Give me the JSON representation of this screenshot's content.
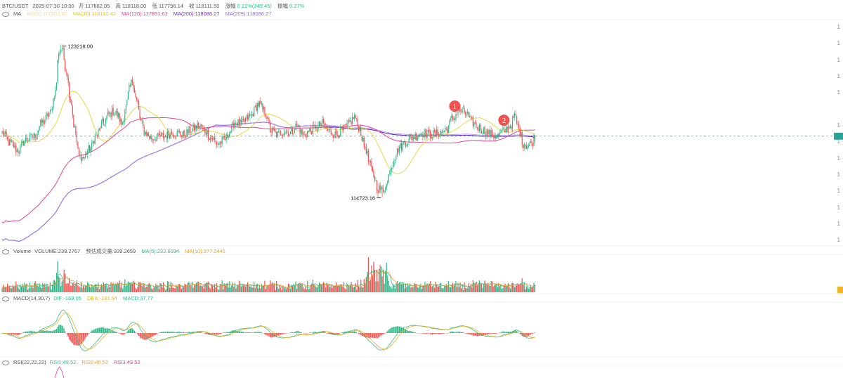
{
  "header": {
    "symbol": "BTC/USDT",
    "datetime": "2025-07-30 10:00",
    "open_label": "开",
    "open": "117862.05",
    "high_label": "高",
    "high": "118118.00",
    "low_label": "低",
    "low": "117796.14",
    "close_label": "收",
    "close": "118111.50",
    "change_label": "涨幅",
    "change": "0.21%(249.45)",
    "amp_label": "振幅",
    "amp": "0.27%"
  },
  "ma_legend": {
    "title": "MA",
    "ma5": "MA(5):117603.92",
    "ma30": "MA(30):118110.42",
    "ma120": "MA(120):117891.63",
    "ma200": "MA(200):118086.27",
    "ma209": "MA(209):118086.27"
  },
  "volume_legend": {
    "title": "Volume",
    "volume": "VOLUME:239.2767",
    "estimate": "预估成交量:339.2659",
    "ma5": "MA(5):232.6094",
    "ma10": "MA(10):377.3441"
  },
  "macd_legend": {
    "title": "MACD(14,30,7)",
    "dif": "DIF:-169.05",
    "dea": "DEA:-181.94",
    "macd": "MACD:37.77"
  },
  "rsi_legend": {
    "title": "RSI(22,22,22)",
    "rsi1": "RSI1:49.52",
    "rsi2": "RSI2:49.52",
    "rsi3": "RSI3:49.52"
  },
  "annotations": {
    "high_marker": "123218.00",
    "low_marker": "114723.16",
    "peak1": "1",
    "peak2": "2"
  },
  "colors": {
    "up": "#2cb98a",
    "down": "#ef5350",
    "ma5": "#f5c242",
    "ma30": "#e6d84a",
    "ma120": "#e0439a",
    "ma200": "#5a2fc2",
    "ma209": "#b08ce8",
    "dif": "#e6b422",
    "dea": "#3cb88a",
    "marker": "#ef5350",
    "price_line": "#26a69a"
  },
  "chart_data": {
    "type": "candlestick",
    "price_range": [
      112000,
      124600
    ],
    "high": 123218.0,
    "low": 114723.16,
    "last_close": 118111.5,
    "anchors": [
      [
        0,
        118300
      ],
      [
        8,
        117700
      ],
      [
        15,
        117300
      ],
      [
        22,
        117900
      ],
      [
        30,
        118100
      ],
      [
        38,
        118900
      ],
      [
        45,
        119400
      ],
      [
        50,
        120600
      ],
      [
        53,
        122800
      ],
      [
        56,
        123000
      ],
      [
        60,
        121800
      ],
      [
        64,
        120200
      ],
      [
        68,
        118500
      ],
      [
        72,
        117000
      ],
      [
        76,
        116900
      ],
      [
        82,
        117400
      ],
      [
        88,
        118100
      ],
      [
        94,
        118800
      ],
      [
        100,
        119300
      ],
      [
        104,
        119500
      ],
      [
        108,
        119300
      ],
      [
        112,
        118800
      ],
      [
        116,
        119700
      ],
      [
        119,
        120700
      ],
      [
        122,
        121200
      ],
      [
        126,
        120100
      ],
      [
        130,
        118900
      ],
      [
        134,
        118300
      ],
      [
        140,
        118000
      ],
      [
        150,
        118100
      ],
      [
        160,
        118300
      ],
      [
        170,
        118200
      ],
      [
        178,
        118500
      ],
      [
        184,
        118700
      ],
      [
        190,
        118400
      ],
      [
        196,
        118000
      ],
      [
        202,
        117700
      ],
      [
        208,
        117900
      ],
      [
        214,
        118400
      ],
      [
        218,
        118900
      ],
      [
        224,
        118800
      ],
      [
        232,
        119200
      ],
      [
        240,
        119900
      ],
      [
        246,
        119500
      ],
      [
        252,
        118400
      ],
      [
        258,
        118200
      ],
      [
        264,
        118400
      ],
      [
        270,
        118300
      ],
      [
        276,
        118700
      ],
      [
        282,
        118200
      ],
      [
        288,
        118400
      ],
      [
        294,
        118600
      ],
      [
        300,
        118800
      ],
      [
        306,
        118400
      ],
      [
        312,
        118200
      ],
      [
        318,
        118400
      ],
      [
        322,
        118600
      ],
      [
        326,
        118900
      ],
      [
        330,
        119200
      ],
      [
        334,
        118600
      ],
      [
        340,
        117500
      ],
      [
        344,
        116600
      ],
      [
        348,
        115900
      ],
      [
        352,
        115200
      ],
      [
        356,
        115100
      ],
      [
        360,
        115400
      ],
      [
        364,
        116400
      ],
      [
        368,
        117000
      ],
      [
        372,
        117500
      ],
      [
        378,
        117800
      ],
      [
        386,
        118100
      ],
      [
        394,
        118300
      ],
      [
        402,
        118200
      ],
      [
        410,
        118300
      ],
      [
        416,
        118500
      ],
      [
        422,
        119100
      ],
      [
        428,
        119500
      ],
      [
        434,
        119400
      ],
      [
        440,
        118900
      ],
      [
        446,
        118600
      ],
      [
        452,
        118400
      ],
      [
        458,
        118200
      ],
      [
        464,
        118100
      ],
      [
        470,
        118400
      ],
      [
        476,
        118700
      ],
      [
        480,
        119200
      ],
      [
        484,
        118500
      ],
      [
        488,
        117700
      ],
      [
        492,
        117600
      ],
      [
        496,
        117700
      ],
      [
        499,
        118100
      ]
    ],
    "high_bar": 55,
    "low_bar": 356,
    "peak1_bar": 420,
    "peak2_bar": 466
  }
}
